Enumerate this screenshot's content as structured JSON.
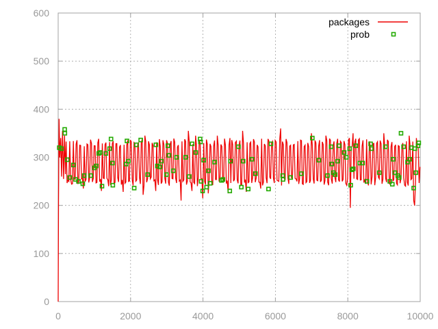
{
  "chart_data": {
    "type": "line",
    "title": "",
    "xlabel": "",
    "ylabel": "",
    "xlim": [
      0,
      10000
    ],
    "ylim": [
      0,
      600
    ],
    "xticks": [
      0,
      2000,
      4000,
      6000,
      8000,
      10000
    ],
    "yticks": [
      0,
      100,
      200,
      300,
      400,
      500,
      600
    ],
    "grid": true,
    "legend_position": "top-right",
    "series": [
      {
        "name": "packages",
        "style": "line",
        "color": "#ee0000",
        "baseline": 290,
        "amplitude": 40,
        "period": 100,
        "points": [
          [
            0,
            0
          ],
          [
            10,
            210
          ],
          [
            25,
            380
          ],
          [
            45,
            300
          ],
          [
            70,
            340
          ],
          [
            95,
            260
          ],
          [
            120,
            355
          ],
          [
            150,
            255
          ],
          [
            175,
            345
          ],
          [
            200,
            265
          ],
          [
            300,
            250
          ],
          [
            400,
            245
          ],
          [
            700,
            235
          ],
          [
            1200,
            230
          ],
          [
            1400,
            240
          ],
          [
            1800,
            228
          ],
          [
            2350,
            222
          ],
          [
            2400,
            345
          ],
          [
            2700,
            230
          ],
          [
            3400,
            210
          ],
          [
            3600,
            355
          ],
          [
            3700,
            230
          ],
          [
            3800,
            345
          ],
          [
            3850,
            240
          ],
          [
            4000,
            215
          ],
          [
            4150,
            225
          ],
          [
            4400,
            345
          ],
          [
            4700,
            225
          ],
          [
            4750,
            340
          ],
          [
            5100,
            355
          ],
          [
            5200,
            228
          ],
          [
            5600,
            235
          ],
          [
            6100,
            250
          ],
          [
            6150,
            360
          ],
          [
            6600,
            250
          ],
          [
            7000,
            350
          ],
          [
            7050,
            255
          ],
          [
            7400,
            345
          ],
          [
            7850,
            250
          ],
          [
            8000,
            255
          ],
          [
            8050,
            340
          ],
          [
            8080,
            195
          ],
          [
            8150,
            350
          ],
          [
            8500,
            245
          ],
          [
            9000,
            350
          ],
          [
            9600,
            240
          ],
          [
            9700,
            345
          ],
          [
            9830,
            210
          ],
          [
            9850,
            200
          ],
          [
            9900,
            340
          ],
          [
            9950,
            320
          ],
          [
            10000,
            280
          ]
        ]
      },
      {
        "name": "prob",
        "style": "points",
        "color": "#22aa00",
        "points": [
          [
            30,
            320
          ],
          [
            90,
            318
          ],
          [
            180,
            358
          ],
          [
            185,
            350
          ],
          [
            250,
            295
          ],
          [
            320,
            258
          ],
          [
            420,
            284
          ],
          [
            480,
            254
          ],
          [
            560,
            250
          ],
          [
            680,
            245
          ],
          [
            720,
            262
          ],
          [
            900,
            262
          ],
          [
            1000,
            278
          ],
          [
            1050,
            282
          ],
          [
            1120,
            308
          ],
          [
            1160,
            310
          ],
          [
            1210,
            240
          ],
          [
            1320,
            308
          ],
          [
            1420,
            318
          ],
          [
            1460,
            338
          ],
          [
            1500,
            288
          ],
          [
            1510,
            242
          ],
          [
            1880,
            286
          ],
          [
            1900,
            334
          ],
          [
            1940,
            292
          ],
          [
            2100,
            236
          ],
          [
            2160,
            326
          ],
          [
            2280,
            336
          ],
          [
            2470,
            264
          ],
          [
            2700,
            326
          ],
          [
            2740,
            282
          ],
          [
            2810,
            280
          ],
          [
            2850,
            292
          ],
          [
            2990,
            264
          ],
          [
            3030,
            324
          ],
          [
            3060,
            304
          ],
          [
            3180,
            272
          ],
          [
            3270,
            300
          ],
          [
            3520,
            300
          ],
          [
            3620,
            260
          ],
          [
            3700,
            328
          ],
          [
            3800,
            310
          ],
          [
            3920,
            338
          ],
          [
            3930,
            332
          ],
          [
            3950,
            250
          ],
          [
            3990,
            230
          ],
          [
            4020,
            294
          ],
          [
            4100,
            238
          ],
          [
            4150,
            272
          ],
          [
            4200,
            246
          ],
          [
            4320,
            290
          ],
          [
            4510,
            252
          ],
          [
            4550,
            254
          ],
          [
            4740,
            230
          ],
          [
            4760,
            292
          ],
          [
            4980,
            322
          ],
          [
            5060,
            238
          ],
          [
            5110,
            292
          ],
          [
            5250,
            234
          ],
          [
            5350,
            296
          ],
          [
            5450,
            266
          ],
          [
            5810,
            234
          ],
          [
            5880,
            328
          ],
          [
            6200,
            262
          ],
          [
            6210,
            254
          ],
          [
            6420,
            258
          ],
          [
            6720,
            266
          ],
          [
            7020,
            340
          ],
          [
            7200,
            294
          ],
          [
            7440,
            262
          ],
          [
            7540,
            322
          ],
          [
            7560,
            286
          ],
          [
            7600,
            268
          ],
          [
            7650,
            264
          ],
          [
            7720,
            292
          ],
          [
            7760,
            324
          ],
          [
            7900,
            310
          ],
          [
            7960,
            300
          ],
          [
            8050,
            318
          ],
          [
            8080,
            242
          ],
          [
            8110,
            274
          ],
          [
            8150,
            276
          ],
          [
            8220,
            324
          ],
          [
            8330,
            288
          ],
          [
            8410,
            288
          ],
          [
            8530,
            250
          ],
          [
            8630,
            328
          ],
          [
            8650,
            318
          ],
          [
            8870,
            268
          ],
          [
            9040,
            322
          ],
          [
            9160,
            250
          ],
          [
            9230,
            244
          ],
          [
            9250,
            296
          ],
          [
            9300,
            268
          ],
          [
            9380,
            262
          ],
          [
            9420,
            258
          ],
          [
            9470,
            350
          ],
          [
            9540,
            322
          ],
          [
            9650,
            290
          ],
          [
            9710,
            296
          ],
          [
            9760,
            320
          ],
          [
            9820,
            236
          ],
          [
            9850,
            318
          ],
          [
            9880,
            268
          ],
          [
            9940,
            324
          ],
          [
            9960,
            330
          ]
        ]
      }
    ]
  }
}
